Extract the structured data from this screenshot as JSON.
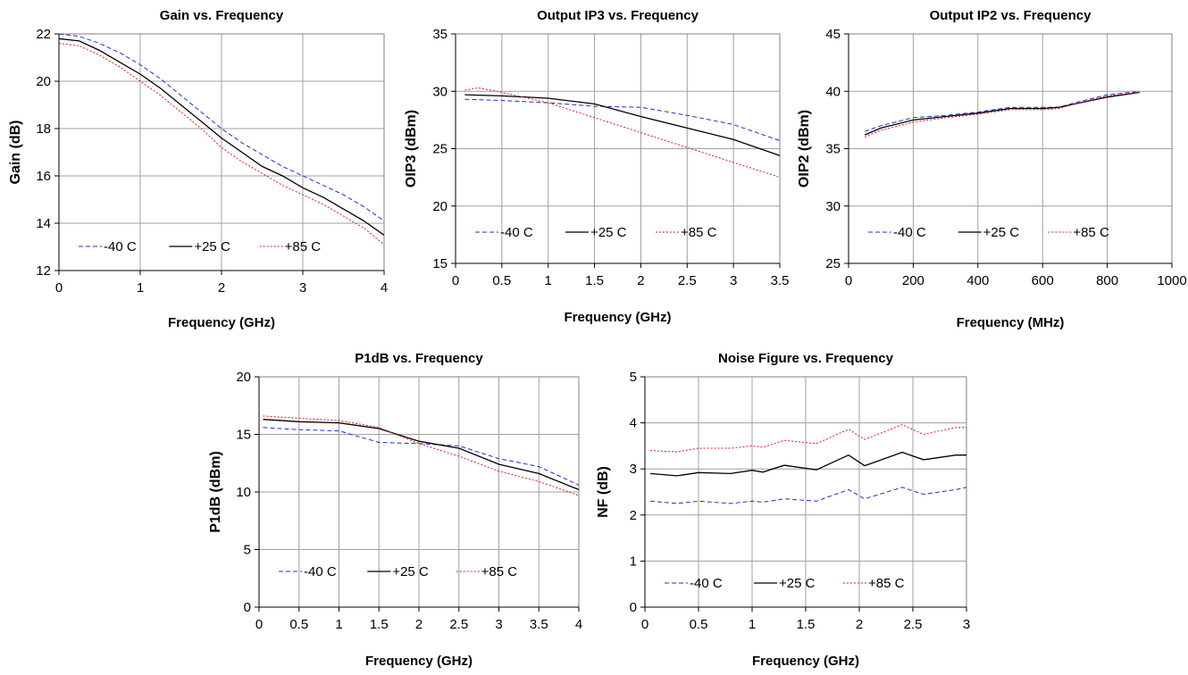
{
  "legend_style": {
    "-40 C": {
      "color": "#1f2fd0",
      "dash": "5,3"
    },
    "+25 C": {
      "color": "#000000",
      "dash": ""
    },
    "+85 C": {
      "color": "#e01a1a",
      "dash": "2,2"
    }
  },
  "chart_data": [
    {
      "id": "gain",
      "type": "line",
      "title": "Gain vs. Frequency",
      "xlabel": "Frequency (GHz)",
      "ylabel": "Gain (dB)",
      "xlim": [
        0,
        4
      ],
      "ylim": [
        12,
        22
      ],
      "xticks": [
        0,
        1,
        2,
        3,
        4
      ],
      "yticks": [
        12,
        14,
        16,
        18,
        20,
        22
      ],
      "legend_labels": [
        "-40 C",
        "+25 C",
        "+85 C"
      ],
      "series": [
        {
          "name": "-40 C",
          "x": [
            0,
            0.25,
            0.5,
            0.75,
            1,
            1.25,
            1.5,
            1.75,
            2,
            2.25,
            2.5,
            2.75,
            3,
            3.25,
            3.5,
            3.75,
            4
          ],
          "y": [
            22,
            21.9,
            21.6,
            21.2,
            20.7,
            20.1,
            19.4,
            18.7,
            18,
            17.4,
            16.9,
            16.4,
            16,
            15.6,
            15.2,
            14.7,
            14.1
          ]
        },
        {
          "name": "+25 C",
          "x": [
            0,
            0.25,
            0.5,
            0.75,
            1,
            1.25,
            1.5,
            1.75,
            2,
            2.25,
            2.5,
            2.75,
            3,
            3.25,
            3.5,
            3.75,
            4
          ],
          "y": [
            21.8,
            21.7,
            21.3,
            20.8,
            20.3,
            19.7,
            19,
            18.3,
            17.6,
            17,
            16.4,
            16,
            15.5,
            15.1,
            14.6,
            14.1,
            13.5
          ]
        },
        {
          "name": "+85 C",
          "x": [
            0,
            0.25,
            0.5,
            0.75,
            1,
            1.25,
            1.5,
            1.75,
            2,
            2.25,
            2.5,
            2.75,
            3,
            3.25,
            3.5,
            3.75,
            4
          ],
          "y": [
            21.6,
            21.5,
            21.1,
            20.6,
            20,
            19.4,
            18.7,
            18,
            17.2,
            16.6,
            16.1,
            15.6,
            15.2,
            14.8,
            14.3,
            13.8,
            13.1
          ]
        }
      ]
    },
    {
      "id": "oip3",
      "type": "line",
      "title": "Output IP3 vs. Frequency",
      "xlabel": "Frequency (GHz)",
      "ylabel": "OIP3 (dBm)",
      "xlim": [
        0,
        3.5
      ],
      "ylim": [
        15,
        35
      ],
      "xticks": [
        0,
        0.5,
        1,
        1.5,
        2,
        2.5,
        3,
        3.5
      ],
      "yticks": [
        15,
        20,
        25,
        30,
        35
      ],
      "legend_labels": [
        "-40 C",
        "+25 C",
        "+85 C"
      ],
      "series": [
        {
          "name": "-40 C",
          "x": [
            0.1,
            0.5,
            1,
            1.5,
            2,
            2.5,
            3,
            3.5
          ],
          "y": [
            29.3,
            29.2,
            29,
            28.7,
            28.6,
            27.9,
            27.1,
            25.7
          ]
        },
        {
          "name": "+25 C",
          "x": [
            0.1,
            0.5,
            1,
            1.5,
            2,
            2.5,
            3,
            3.5
          ],
          "y": [
            29.7,
            29.6,
            29.4,
            28.9,
            27.8,
            26.8,
            25.8,
            24.4
          ]
        },
        {
          "name": "+85 C",
          "x": [
            0.1,
            0.25,
            0.5,
            1,
            1.5,
            2,
            2.5,
            3,
            3.5
          ],
          "y": [
            30.1,
            30.3,
            29.9,
            29,
            27.7,
            26.4,
            25.1,
            23.8,
            22.5
          ]
        }
      ]
    },
    {
      "id": "oip2",
      "type": "line",
      "title": "Output IP2 vs. Frequency",
      "xlabel": "Frequency (MHz)",
      "ylabel": "OIP2 (dBm)",
      "xlim": [
        0,
        1000
      ],
      "ylim": [
        25,
        45
      ],
      "xticks": [
        0,
        200,
        400,
        600,
        800,
        1000
      ],
      "yticks": [
        25,
        30,
        35,
        40,
        45
      ],
      "legend_labels": [
        "-40 C",
        "+25 C",
        "+85 C"
      ],
      "series": [
        {
          "name": "-40 C",
          "x": [
            50,
            100,
            200,
            300,
            400,
            500,
            600,
            650,
            700,
            800,
            900
          ],
          "y": [
            36.5,
            37,
            37.7,
            37.9,
            38.2,
            38.6,
            38.6,
            38.6,
            39,
            39.7,
            40
          ]
        },
        {
          "name": "+25 C",
          "x": [
            50,
            100,
            200,
            300,
            400,
            500,
            600,
            650,
            700,
            800,
            900
          ],
          "y": [
            36.2,
            36.8,
            37.5,
            37.8,
            38.1,
            38.5,
            38.5,
            38.6,
            38.9,
            39.5,
            39.9
          ]
        },
        {
          "name": "+85 C",
          "x": [
            50,
            100,
            200,
            300,
            400,
            500,
            600,
            650,
            700,
            800,
            900
          ],
          "y": [
            36,
            36.6,
            37.3,
            37.7,
            38,
            38.4,
            38.4,
            38.5,
            38.9,
            39.6,
            39.9
          ]
        }
      ]
    },
    {
      "id": "p1db",
      "type": "line",
      "title": "P1dB vs. Frequency",
      "xlabel": "Frequency (GHz)",
      "ylabel": "P1dB (dBm)",
      "xlim": [
        0,
        4
      ],
      "ylim": [
        0,
        20
      ],
      "xticks": [
        0,
        0.5,
        1,
        1.5,
        2,
        2.5,
        3,
        3.5,
        4
      ],
      "yticks": [
        0,
        5,
        10,
        15,
        20
      ],
      "legend_labels": [
        "-40 C",
        "+25 C",
        "+85 C"
      ],
      "series": [
        {
          "name": "-40 C",
          "x": [
            0.05,
            0.5,
            1,
            1.5,
            2,
            2.5,
            3,
            3.5,
            4
          ],
          "y": [
            15.6,
            15.4,
            15.3,
            14.3,
            14.2,
            14,
            12.9,
            12.2,
            10.6
          ]
        },
        {
          "name": "+25 C",
          "x": [
            0.05,
            0.5,
            1,
            1.5,
            2,
            2.5,
            3,
            3.5,
            4
          ],
          "y": [
            16.3,
            16.1,
            16,
            15.5,
            14.4,
            13.8,
            12.4,
            11.6,
            10.2
          ]
        },
        {
          "name": "+85 C",
          "x": [
            0.05,
            0.5,
            1,
            1.5,
            2,
            2.5,
            3,
            3.5,
            4
          ],
          "y": [
            16.6,
            16.4,
            16.2,
            15.6,
            14.2,
            13.1,
            11.8,
            10.9,
            9.7
          ]
        }
      ]
    },
    {
      "id": "nf",
      "type": "line",
      "title": "Noise Figure vs. Frequency",
      "xlabel": "Frequency (GHz)",
      "ylabel": "NF (dB)",
      "xlim": [
        0,
        3
      ],
      "ylim": [
        0,
        5
      ],
      "xticks": [
        0,
        0.5,
        1,
        1.5,
        2,
        2.5,
        3
      ],
      "yticks": [
        0,
        1,
        2,
        3,
        4,
        5
      ],
      "legend_labels": [
        "-40 C",
        "+25 C",
        "+85 C"
      ],
      "series": [
        {
          "name": "-40 C",
          "x": [
            0.05,
            0.3,
            0.5,
            0.8,
            1,
            1.1,
            1.3,
            1.6,
            1.9,
            2.05,
            2.4,
            2.6,
            2.9,
            3
          ],
          "y": [
            2.3,
            2.25,
            2.3,
            2.25,
            2.3,
            2.28,
            2.35,
            2.3,
            2.55,
            2.35,
            2.6,
            2.45,
            2.55,
            2.6
          ]
        },
        {
          "name": "+25 C",
          "x": [
            0.05,
            0.3,
            0.5,
            0.8,
            1,
            1.1,
            1.3,
            1.6,
            1.9,
            2.05,
            2.4,
            2.6,
            2.9,
            3
          ],
          "y": [
            2.9,
            2.85,
            2.92,
            2.9,
            2.97,
            2.93,
            3.08,
            2.98,
            3.3,
            3.07,
            3.36,
            3.2,
            3.3,
            3.3
          ]
        },
        {
          "name": "+85 C",
          "x": [
            0.05,
            0.3,
            0.5,
            0.8,
            1,
            1.1,
            1.3,
            1.6,
            1.9,
            2.05,
            2.4,
            2.6,
            2.9,
            3
          ],
          "y": [
            3.4,
            3.37,
            3.45,
            3.45,
            3.5,
            3.47,
            3.62,
            3.55,
            3.86,
            3.64,
            3.96,
            3.75,
            3.9,
            3.9
          ]
        }
      ]
    }
  ]
}
